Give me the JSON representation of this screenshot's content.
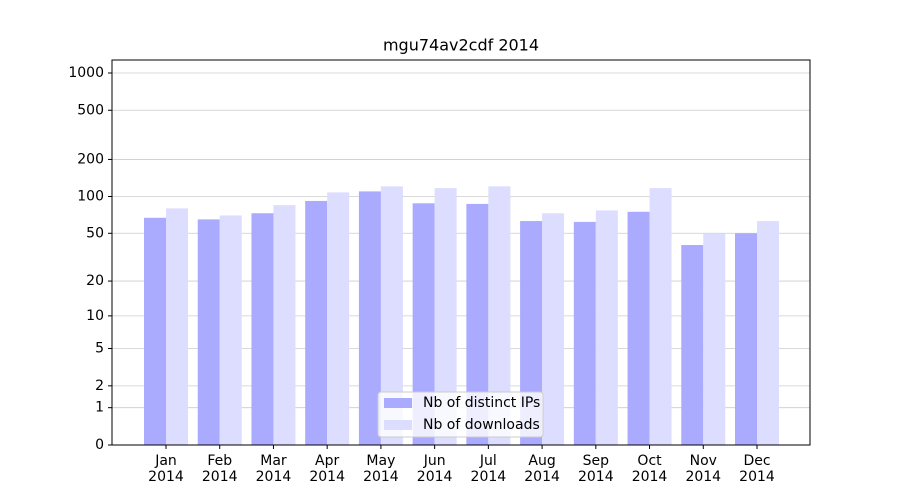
{
  "chart_data": {
    "type": "bar",
    "title": "mgu74av2cdf 2014",
    "categories": [
      "Jan\n2014",
      "Feb\n2014",
      "Mar\n2014",
      "Apr\n2014",
      "May\n2014",
      "Jun\n2014",
      "Jul\n2014",
      "Aug\n2014",
      "Sep\n2014",
      "Oct\n2014",
      "Nov\n2014",
      "Dec\n2014"
    ],
    "series": [
      {
        "name": "Nb of distinct IPs",
        "color": "#aaaaff",
        "values": [
          67,
          65,
          73,
          92,
          110,
          88,
          87,
          63,
          62,
          75,
          40,
          50
        ]
      },
      {
        "name": "Nb of downloads",
        "color": "#ddddff",
        "values": [
          80,
          70,
          85,
          108,
          121,
          117,
          121,
          73,
          77,
          117,
          50,
          63
        ]
      }
    ],
    "ylim": [
      0,
      1273
    ],
    "yticks": [
      0,
      1,
      2,
      5,
      10,
      20,
      50,
      100,
      200,
      500,
      1000
    ],
    "scale": "symlog",
    "grid": true,
    "legend": "lower center"
  }
}
